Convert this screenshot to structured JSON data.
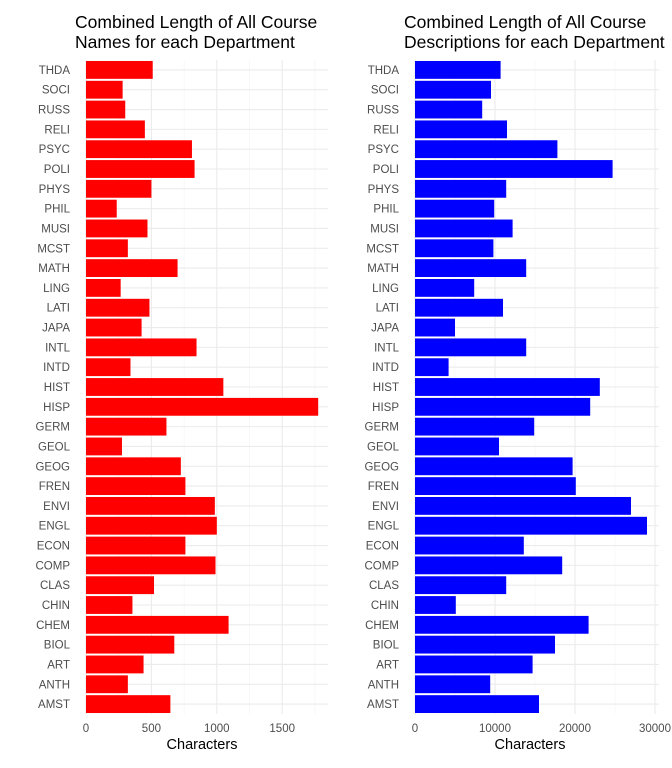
{
  "chart_data": [
    {
      "type": "bar",
      "orientation": "horizontal",
      "title_lines": [
        "Combined Length of All Course",
        "Names for each Department"
      ],
      "xlabel": "Characters",
      "ylabel": "",
      "xlim": [
        0,
        1850
      ],
      "x_ticks": [
        0,
        500,
        1000,
        1500
      ],
      "x_tick_labels": [
        "0",
        "500",
        "1000",
        "1500"
      ],
      "color": "#ff0000",
      "categories": [
        "AMST",
        "ANTH",
        "ART",
        "BIOL",
        "CHEM",
        "CHIN",
        "CLAS",
        "COMP",
        "ECON",
        "ENGL",
        "ENVI",
        "FREN",
        "GEOG",
        "GEOL",
        "GERM",
        "HISP",
        "HIST",
        "INTD",
        "INTL",
        "JAPA",
        "LATI",
        "LING",
        "MATH",
        "MCST",
        "MUSI",
        "PHIL",
        "PHYS",
        "POLI",
        "PSYC",
        "RELI",
        "RUSS",
        "SOCI",
        "THDA"
      ],
      "values": [
        645,
        320,
        440,
        675,
        1090,
        355,
        520,
        990,
        760,
        1000,
        985,
        760,
        725,
        275,
        615,
        1775,
        1050,
        340,
        845,
        425,
        485,
        265,
        700,
        320,
        470,
        235,
        500,
        830,
        810,
        450,
        300,
        280,
        510
      ],
      "grid": true
    },
    {
      "type": "bar",
      "orientation": "horizontal",
      "title_lines": [
        "Combined Length of All Course",
        "Descriptions for each Department"
      ],
      "xlabel": "Characters",
      "ylabel": "",
      "xlim": [
        0,
        30500
      ],
      "x_ticks": [
        0,
        10000,
        20000,
        30000
      ],
      "x_tick_labels": [
        "0",
        "10000",
        "20000",
        "30000"
      ],
      "color": "#0000ff",
      "categories": [
        "AMST",
        "ANTH",
        "ART",
        "BIOL",
        "CHEM",
        "CHIN",
        "CLAS",
        "COMP",
        "ECON",
        "ENGL",
        "ENVI",
        "FREN",
        "GEOG",
        "GEOL",
        "GERM",
        "HISP",
        "HIST",
        "INTD",
        "INTL",
        "JAPA",
        "LATI",
        "LING",
        "MATH",
        "MCST",
        "MUSI",
        "PHIL",
        "PHYS",
        "POLI",
        "PSYC",
        "RELI",
        "RUSS",
        "SOCI",
        "THDA"
      ],
      "values": [
        15500,
        9400,
        14700,
        17500,
        21700,
        5100,
        11400,
        18400,
        13600,
        29000,
        27000,
        20100,
        19700,
        10500,
        14900,
        21900,
        23100,
        4200,
        13900,
        5000,
        11000,
        7400,
        13900,
        9800,
        12200,
        9900,
        11400,
        24700,
        17800,
        11500,
        8400,
        9500,
        10700
      ],
      "grid": true
    }
  ]
}
